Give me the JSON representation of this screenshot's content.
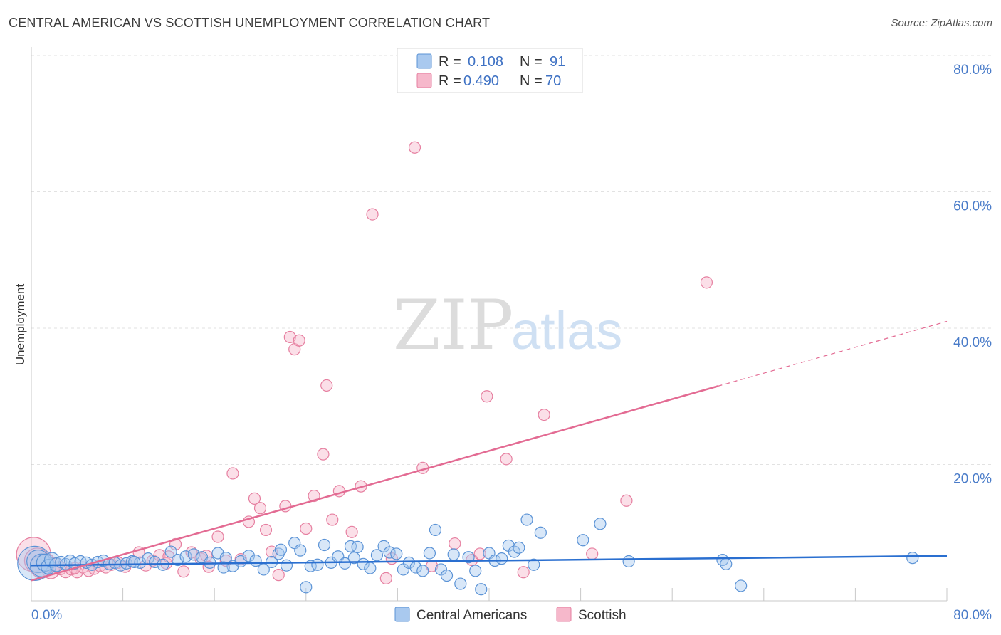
{
  "title": "CENTRAL AMERICAN VS SCOTTISH UNEMPLOYMENT CORRELATION CHART",
  "source": "Source: ZipAtlas.com",
  "watermark": {
    "zip": "ZIP",
    "atlas": "atlas"
  },
  "colors": {
    "blue_fill": "#a9c9ef",
    "blue_stroke": "#5b93d6",
    "blue_line": "#2a6fd0",
    "pink_fill": "#f6b8cb",
    "pink_stroke": "#e67fa0",
    "pink_line": "#e36b93",
    "tick_text": "#4a7cc9",
    "grid": "#e2e2e2"
  },
  "legend": {
    "rows": [
      {
        "r_label": "R =",
        "r_value": "0.108",
        "n_label": "N =",
        "n_value": "91"
      },
      {
        "r_label": "R =",
        "r_value": "0.490",
        "n_label": "N =",
        "n_value": "70"
      }
    ]
  },
  "bottom_legend": {
    "series1": "Central Americans",
    "series2": "Scottish"
  },
  "chart_data": {
    "type": "scatter",
    "title": "CENTRAL AMERICAN VS SCOTTISH UNEMPLOYMENT CORRELATION CHART",
    "xlabel": "",
    "ylabel": "Unemployment",
    "xlim": [
      0,
      80
    ],
    "ylim": [
      0,
      80
    ],
    "x_tick_labels": [
      "0.0%",
      "80.0%"
    ],
    "y_tick_labels": [
      "20.0%",
      "40.0%",
      "60.0%",
      "80.0%"
    ],
    "y_tick_values": [
      20,
      40,
      60,
      80
    ],
    "series": [
      {
        "name": "Central Americans",
        "r": 0.108,
        "n": 91,
        "trend": {
          "x0": 0,
          "y0": 5.2,
          "x1": 80,
          "y1": 6.6,
          "dash_from": null
        },
        "points": [
          [
            0.3,
            5.5,
            3
          ],
          [
            0.6,
            5.8,
            2
          ],
          [
            0.9,
            5.2,
            2
          ],
          [
            1.2,
            5.6,
            1.5
          ],
          [
            1.5,
            5.0,
            1.3
          ],
          [
            1.8,
            6.0,
            1.3
          ],
          [
            2.2,
            5.3,
            1.2
          ],
          [
            2.6,
            5.7,
            1
          ],
          [
            3.0,
            5.4,
            1
          ],
          [
            3.4,
            5.9,
            1
          ],
          [
            3.8,
            5.5,
            1
          ],
          [
            4.3,
            5.8,
            1
          ],
          [
            4.8,
            5.6,
            1
          ],
          [
            5.3,
            5.3,
            1
          ],
          [
            5.8,
            5.7,
            1
          ],
          [
            6.3,
            5.9,
            1
          ],
          [
            6.8,
            5.4,
            1
          ],
          [
            7.3,
            5.6,
            1
          ],
          [
            7.8,
            5.2,
            1
          ],
          [
            8.3,
            5.5,
            1
          ],
          [
            8.8,
            5.8,
            1
          ],
          [
            9.5,
            5.6,
            1
          ],
          [
            10.2,
            6.2,
            1
          ],
          [
            10.8,
            5.7,
            1
          ],
          [
            11.5,
            5.3,
            1
          ],
          [
            12.2,
            7.2,
            1
          ],
          [
            12.8,
            6.0,
            1
          ],
          [
            13.5,
            6.5,
            1
          ],
          [
            14.2,
            6.8,
            1
          ],
          [
            14.9,
            6.4,
            1
          ],
          [
            15.6,
            5.6,
            1
          ],
          [
            16.3,
            7.0,
            1
          ],
          [
            17.0,
            6.3,
            1
          ],
          [
            17.6,
            5.1,
            1
          ],
          [
            18.3,
            5.8,
            1
          ],
          [
            19.0,
            6.6,
            1
          ],
          [
            19.6,
            5.9,
            1
          ],
          [
            20.3,
            4.6,
            1
          ],
          [
            21.0,
            5.7,
            1
          ],
          [
            21.6,
            6.9,
            1
          ],
          [
            22.3,
            5.2,
            1
          ],
          [
            23.0,
            8.5,
            1
          ],
          [
            23.5,
            7.4,
            1
          ],
          [
            24.0,
            2.0,
            1
          ],
          [
            24.4,
            5.1,
            1
          ],
          [
            25.0,
            5.3,
            1
          ],
          [
            25.6,
            8.2,
            1
          ],
          [
            26.2,
            5.6,
            1
          ],
          [
            26.8,
            6.5,
            1
          ],
          [
            27.4,
            5.5,
            1
          ],
          [
            27.9,
            8.0,
            1
          ],
          [
            28.5,
            7.9,
            1
          ],
          [
            29.0,
            5.4,
            1
          ],
          [
            29.6,
            4.8,
            1
          ],
          [
            30.2,
            6.7,
            1
          ],
          [
            30.8,
            8.0,
            1
          ],
          [
            31.3,
            7.1,
            1
          ],
          [
            31.9,
            6.9,
            1
          ],
          [
            32.5,
            4.6,
            1
          ],
          [
            33.0,
            5.6,
            1
          ],
          [
            33.6,
            4.9,
            1
          ],
          [
            34.2,
            4.4,
            1
          ],
          [
            34.8,
            7.0,
            1
          ],
          [
            35.3,
            10.4,
            1
          ],
          [
            35.8,
            4.6,
            1
          ],
          [
            36.3,
            3.7,
            1
          ],
          [
            36.9,
            6.8,
            1
          ],
          [
            37.5,
            2.5,
            1
          ],
          [
            38.2,
            6.4,
            1
          ],
          [
            38.8,
            4.4,
            1
          ],
          [
            39.3,
            1.7,
            1
          ],
          [
            40.0,
            7.0,
            1
          ],
          [
            40.5,
            5.9,
            1
          ],
          [
            41.1,
            6.2,
            1
          ],
          [
            41.7,
            8.1,
            1
          ],
          [
            42.2,
            7.2,
            1
          ],
          [
            42.6,
            7.8,
            1
          ],
          [
            43.3,
            11.9,
            1
          ],
          [
            43.9,
            5.3,
            1
          ],
          [
            44.5,
            10.0,
            1
          ],
          [
            48.2,
            8.9,
            1
          ],
          [
            49.7,
            11.3,
            1
          ],
          [
            52.2,
            5.8,
            1
          ],
          [
            60.4,
            6.0,
            1
          ],
          [
            60.7,
            5.4,
            1
          ],
          [
            62.0,
            2.2,
            1
          ],
          [
            77.0,
            6.3,
            1
          ],
          [
            28.2,
            6.3,
            1
          ],
          [
            21.8,
            7.5,
            1
          ],
          [
            16.8,
            4.9,
            1
          ],
          [
            9.0,
            5.7,
            1
          ]
        ]
      },
      {
        "name": "Scottish",
        "r": 0.49,
        "n": 70,
        "trend": {
          "x0": 0,
          "y0": 3.0,
          "x1": 80,
          "y1": 41.0,
          "dash_from": 60
        },
        "points": [
          [
            0.2,
            6.8,
            3
          ],
          [
            0.5,
            5.9,
            2.2
          ],
          [
            0.9,
            5.0,
            2
          ],
          [
            1.3,
            5.6,
            1.6
          ],
          [
            1.7,
            4.5,
            1.5
          ],
          [
            2.1,
            5.3,
            1.3
          ],
          [
            2.5,
            4.8,
            1.2
          ],
          [
            3.0,
            4.3,
            1.1
          ],
          [
            3.5,
            4.6,
            1
          ],
          [
            4.0,
            4.2,
            1
          ],
          [
            4.5,
            4.9,
            1
          ],
          [
            5.0,
            4.4,
            1
          ],
          [
            5.5,
            4.7,
            1
          ],
          [
            6.0,
            5.1,
            1
          ],
          [
            6.5,
            4.9,
            1
          ],
          [
            7.0,
            5.3,
            1
          ],
          [
            7.6,
            5.6,
            1
          ],
          [
            8.2,
            5.0,
            1
          ],
          [
            8.8,
            5.8,
            1
          ],
          [
            9.4,
            7.1,
            1
          ],
          [
            10.0,
            5.2,
            1
          ],
          [
            10.6,
            5.9,
            1
          ],
          [
            11.2,
            6.7,
            1
          ],
          [
            11.8,
            5.5,
            1
          ],
          [
            12.6,
            8.3,
            1
          ],
          [
            13.3,
            4.3,
            1
          ],
          [
            14.0,
            7.1,
            1
          ],
          [
            14.8,
            6.2,
            1
          ],
          [
            15.5,
            5.0,
            1
          ],
          [
            16.3,
            9.4,
            1
          ],
          [
            17.0,
            5.9,
            1
          ],
          [
            17.6,
            18.7,
            1
          ],
          [
            18.3,
            6.1,
            1
          ],
          [
            19.0,
            11.6,
            1
          ],
          [
            19.5,
            15.0,
            1
          ],
          [
            20.0,
            13.6,
            1
          ],
          [
            20.5,
            10.4,
            1
          ],
          [
            21.0,
            7.2,
            1
          ],
          [
            21.6,
            3.8,
            1
          ],
          [
            22.2,
            13.9,
            1
          ],
          [
            22.6,
            38.7,
            1
          ],
          [
            23.0,
            36.9,
            1
          ],
          [
            23.4,
            38.2,
            1
          ],
          [
            24.0,
            10.6,
            1
          ],
          [
            24.7,
            15.4,
            1
          ],
          [
            25.5,
            21.5,
            1
          ],
          [
            25.8,
            31.6,
            1
          ],
          [
            26.3,
            11.9,
            1
          ],
          [
            26.9,
            16.1,
            1
          ],
          [
            28.0,
            10.1,
            1
          ],
          [
            28.8,
            16.8,
            1
          ],
          [
            29.8,
            56.7,
            1
          ],
          [
            31.0,
            3.3,
            1
          ],
          [
            31.5,
            6.2,
            1
          ],
          [
            33.5,
            66.5,
            1
          ],
          [
            34.2,
            19.5,
            1
          ],
          [
            35.0,
            5.1,
            1
          ],
          [
            37.0,
            8.4,
            1
          ],
          [
            38.5,
            6.0,
            1
          ],
          [
            39.2,
            6.9,
            1
          ],
          [
            39.8,
            30.0,
            1
          ],
          [
            41.5,
            20.8,
            1
          ],
          [
            43.0,
            4.2,
            1
          ],
          [
            44.8,
            27.3,
            1
          ],
          [
            49.0,
            6.9,
            1
          ],
          [
            52.0,
            14.7,
            1
          ],
          [
            59.0,
            46.7,
            1
          ],
          [
            15.3,
            6.6,
            1
          ],
          [
            12.0,
            6.5,
            1
          ],
          [
            3.8,
            4.8,
            1
          ]
        ]
      }
    ]
  }
}
